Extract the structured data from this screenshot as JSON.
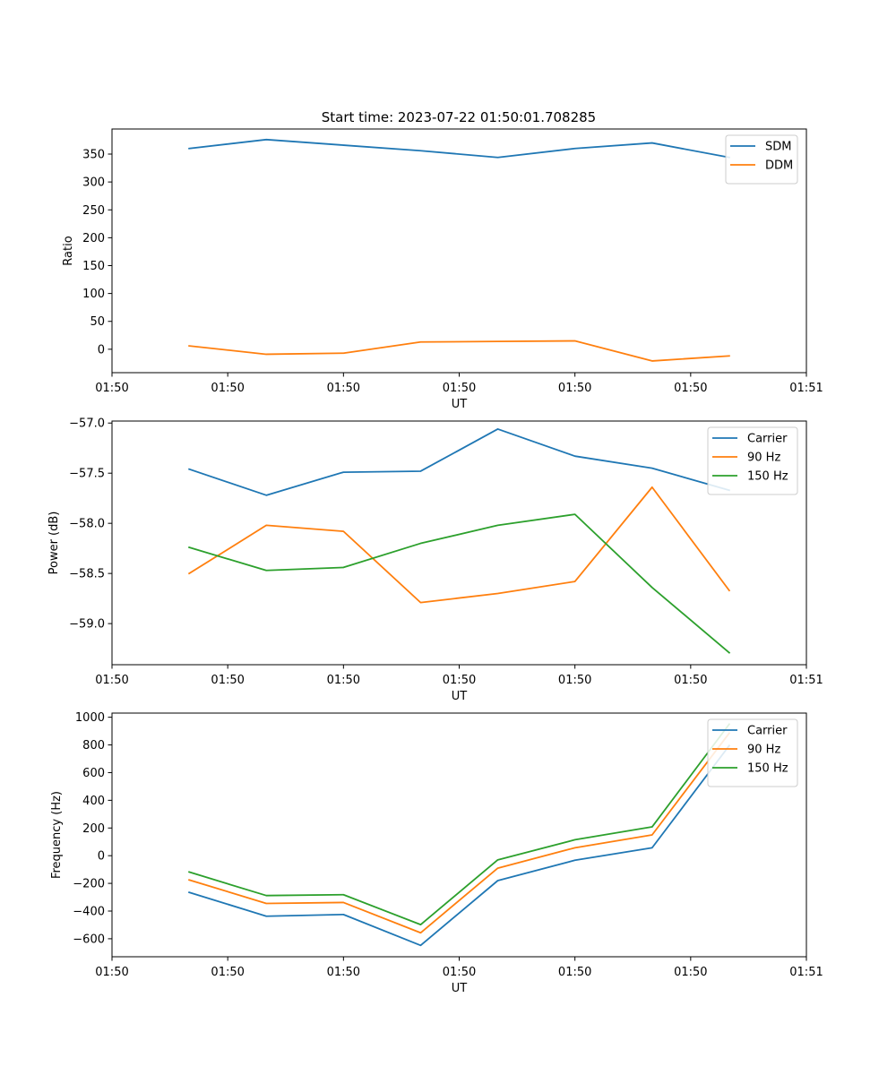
{
  "figure": {
    "title": "Start time: 2023-07-22 01:50:01.708285"
  },
  "colors": {
    "blue": "#1f77b4",
    "orange": "#ff7f0e",
    "green": "#2ca02c"
  },
  "chart_data": [
    {
      "type": "line",
      "title": "Start time: 2023-07-22 01:50:01.708285",
      "xlabel": "UT",
      "ylabel": "Ratio",
      "x_index": [
        1,
        2,
        3,
        4,
        5,
        6,
        7,
        8
      ],
      "xlim": [
        0,
        9
      ],
      "x_ticks": [
        0,
        1.5,
        3,
        4.5,
        6,
        7.5,
        9
      ],
      "x_tick_labels": [
        "01:50",
        "01:50",
        "01:50",
        "01:50",
        "01:50",
        "01:50",
        "01:51"
      ],
      "ylim": [
        -42,
        395
      ],
      "y_ticks": [
        0,
        50,
        100,
        150,
        200,
        250,
        300,
        350
      ],
      "y_tick_labels": [
        "0",
        "50",
        "100",
        "150",
        "200",
        "250",
        "300",
        "350"
      ],
      "grid": false,
      "legend_position": "top-right",
      "series": [
        {
          "name": "SDM",
          "color": "#1f77b4",
          "values": [
            360,
            376,
            366,
            356,
            344,
            360,
            370,
            344
          ]
        },
        {
          "name": "DDM",
          "color": "#ff7f0e",
          "values": [
            6,
            -9,
            -7,
            13,
            14,
            15,
            -21,
            -12
          ]
        }
      ]
    },
    {
      "type": "line",
      "title": "",
      "xlabel": "UT",
      "ylabel": "Power (dB)",
      "x_index": [
        1,
        2,
        3,
        4,
        5,
        6,
        7,
        8
      ],
      "xlim": [
        0,
        9
      ],
      "x_ticks": [
        0,
        1.5,
        3,
        4.5,
        6,
        7.5,
        9
      ],
      "x_tick_labels": [
        "01:50",
        "01:50",
        "01:50",
        "01:50",
        "01:50",
        "01:50",
        "01:51"
      ],
      "ylim": [
        -59.41,
        -56.98
      ],
      "y_ticks": [
        -59.0,
        -58.5,
        -58.0,
        -57.5,
        -57.0
      ],
      "y_tick_labels": [
        "−59.0",
        "−58.5",
        "−58.0",
        "−57.5",
        "−57.0"
      ],
      "grid": false,
      "legend_position": "top-right",
      "series": [
        {
          "name": "Carrier",
          "color": "#1f77b4",
          "values": [
            -57.46,
            -57.72,
            -57.49,
            -57.48,
            -57.06,
            -57.33,
            -57.45,
            -57.67
          ]
        },
        {
          "name": "90 Hz",
          "color": "#ff7f0e",
          "values": [
            -58.5,
            -58.02,
            -58.08,
            -58.79,
            -58.7,
            -58.58,
            -57.64,
            -58.67
          ]
        },
        {
          "name": "150 Hz",
          "color": "#2ca02c",
          "values": [
            -58.24,
            -58.47,
            -58.44,
            -58.2,
            -58.02,
            -57.91,
            -58.64,
            -59.29
          ]
        }
      ]
    },
    {
      "type": "line",
      "title": "",
      "xlabel": "UT",
      "ylabel": "Frequency (Hz)",
      "x_index": [
        1,
        2,
        3,
        4,
        5,
        6,
        7,
        8
      ],
      "xlim": [
        0,
        9
      ],
      "x_ticks": [
        0,
        1.5,
        3,
        4.5,
        6,
        7.5,
        9
      ],
      "x_tick_labels": [
        "01:50",
        "01:50",
        "01:50",
        "01:50",
        "01:50",
        "01:50",
        "01:51"
      ],
      "ylim": [
        -730,
        1030
      ],
      "y_ticks": [
        -600,
        -400,
        -200,
        0,
        200,
        400,
        600,
        800,
        1000
      ],
      "y_tick_labels": [
        "−600",
        "−400",
        "−200",
        "0",
        "200",
        "400",
        "600",
        "800",
        "1000"
      ],
      "grid": false,
      "legend_position": "top-right",
      "series": [
        {
          "name": "Carrier",
          "color": "#1f77b4",
          "values": [
            -265,
            -437,
            -425,
            -648,
            -180,
            -33,
            57,
            795
          ]
        },
        {
          "name": "90 Hz",
          "color": "#ff7f0e",
          "values": [
            -175,
            -345,
            -338,
            -557,
            -90,
            57,
            150,
            885
          ]
        },
        {
          "name": "150 Hz",
          "color": "#2ca02c",
          "values": [
            -118,
            -288,
            -282,
            -498,
            -30,
            115,
            208,
            950
          ]
        }
      ]
    }
  ]
}
